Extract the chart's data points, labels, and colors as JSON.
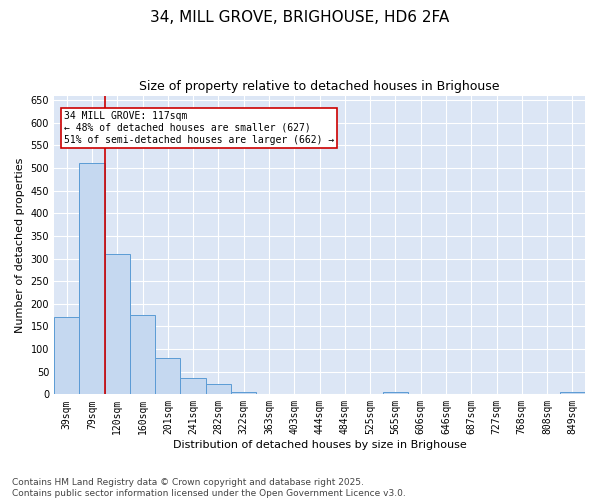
{
  "title": "34, MILL GROVE, BRIGHOUSE, HD6 2FA",
  "subtitle": "Size of property relative to detached houses in Brighouse",
  "xlabel": "Distribution of detached houses by size in Brighouse",
  "ylabel": "Number of detached properties",
  "categories": [
    "39sqm",
    "79sqm",
    "120sqm",
    "160sqm",
    "201sqm",
    "241sqm",
    "282sqm",
    "322sqm",
    "363sqm",
    "403sqm",
    "444sqm",
    "484sqm",
    "525sqm",
    "565sqm",
    "606sqm",
    "646sqm",
    "687sqm",
    "727sqm",
    "768sqm",
    "808sqm",
    "849sqm"
  ],
  "values": [
    170,
    510,
    310,
    175,
    80,
    35,
    22,
    5,
    0,
    0,
    0,
    0,
    0,
    5,
    0,
    0,
    0,
    0,
    0,
    0,
    5
  ],
  "bar_color": "#c5d8f0",
  "bar_edge_color": "#5b9bd5",
  "vline_color": "#cc0000",
  "vline_x_index": 1.5,
  "reference_line_label": "34 MILL GROVE: 117sqm",
  "pct_smaller": "48% of detached houses are smaller (627)",
  "pct_larger": "51% of semi-detached houses are larger (662)",
  "annotation_box_facecolor": "#ffffff",
  "annotation_box_edgecolor": "#cc0000",
  "ylim": [
    0,
    660
  ],
  "yticks": [
    0,
    50,
    100,
    150,
    200,
    250,
    300,
    350,
    400,
    450,
    500,
    550,
    600,
    650
  ],
  "background_color": "#dce6f5",
  "grid_color": "#ffffff",
  "footer": "Contains HM Land Registry data © Crown copyright and database right 2025.\nContains public sector information licensed under the Open Government Licence v3.0.",
  "title_fontsize": 11,
  "subtitle_fontsize": 9,
  "axis_label_fontsize": 8,
  "tick_fontsize": 7,
  "annotation_fontsize": 7,
  "footer_fontsize": 6.5
}
